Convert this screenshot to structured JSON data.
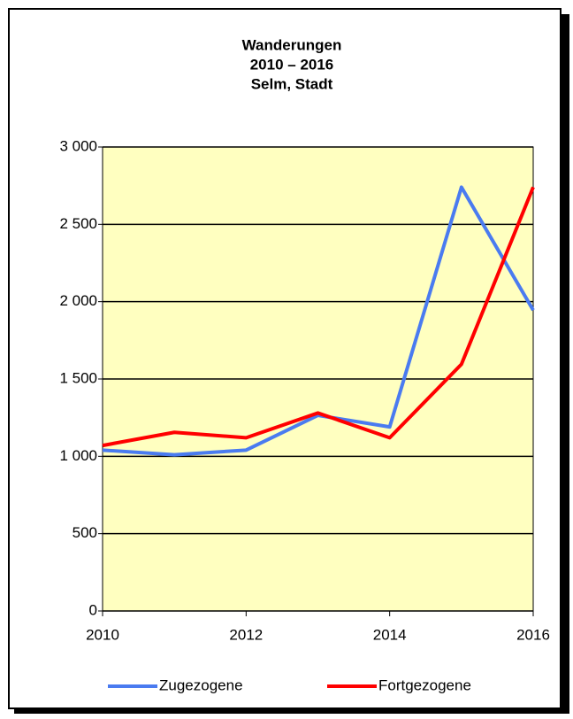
{
  "chart_data": {
    "type": "line",
    "title": [
      "Wanderungen",
      "2010 – 2016",
      "Selm, Stadt"
    ],
    "x": [
      2010,
      2011,
      2012,
      2013,
      2014,
      2015,
      2016
    ],
    "series": [
      {
        "name": "Zugezogene",
        "color": "#4a7bf0",
        "values": [
          1040,
          1010,
          1040,
          1265,
          1190,
          2740,
          1945
        ]
      },
      {
        "name": "Fortgezogene",
        "color": "#ff0000",
        "values": [
          1070,
          1155,
          1120,
          1280,
          1120,
          1595,
          2740
        ]
      }
    ],
    "xlim": [
      2010,
      2016
    ],
    "xticks": [
      2010,
      2012,
      2014,
      2016
    ],
    "ylim": [
      0,
      3000
    ],
    "yticks": [
      0,
      500,
      {
        "value": 1000,
        "label": "1 000"
      },
      {
        "value": 1500,
        "label": "1 500"
      },
      {
        "value": 2000,
        "label": "2 000"
      },
      {
        "value": 2500,
        "label": "2 500"
      },
      {
        "value": 3000,
        "label": "3 000"
      }
    ],
    "grid": true,
    "legend": "bottom",
    "background": "#ffffc0"
  }
}
